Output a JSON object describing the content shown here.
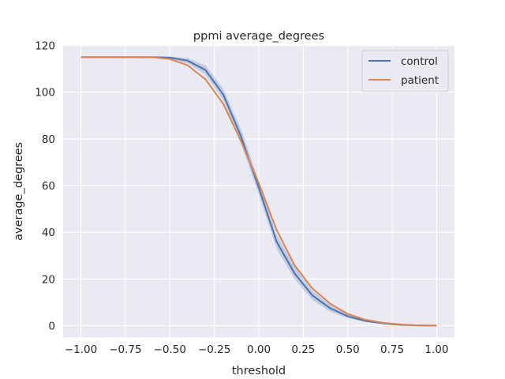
{
  "chart_data": {
    "type": "line",
    "title": "ppmi average_degrees",
    "xlabel": "threshold",
    "ylabel": "average_degrees",
    "xlim": [
      -1.1,
      1.1
    ],
    "ylim": [
      -5,
      120
    ],
    "xticks": [
      -1.0,
      -0.75,
      -0.5,
      -0.25,
      0.0,
      0.25,
      0.5,
      0.75,
      1.0
    ],
    "xtick_labels": [
      "−1.00",
      "−0.75",
      "−0.50",
      "−0.25",
      "0.00",
      "0.25",
      "0.50",
      "0.75",
      "1.00"
    ],
    "yticks": [
      0,
      20,
      40,
      60,
      80,
      100,
      120
    ],
    "ytick_labels": [
      "0",
      "20",
      "40",
      "60",
      "80",
      "100",
      "120"
    ],
    "grid": true,
    "legend_position": "top-right",
    "x": [
      -1.0,
      -0.9,
      -0.8,
      -0.7,
      -0.6,
      -0.5,
      -0.4,
      -0.3,
      -0.2,
      -0.1,
      0.0,
      0.1,
      0.2,
      0.3,
      0.4,
      0.5,
      0.6,
      0.7,
      0.8,
      0.9,
      1.0
    ],
    "series": [
      {
        "name": "control",
        "color": "#4c72b0",
        "values": [
          115,
          115,
          115,
          115,
          115,
          114.8,
          113.5,
          109.5,
          99,
          81,
          59,
          36,
          22.5,
          13,
          7.5,
          4,
          2,
          1,
          0.3,
          0.1,
          0
        ],
        "band_lower": [
          114.6,
          114.6,
          114.6,
          114.6,
          114.5,
          114.1,
          112.3,
          107.5,
          96.5,
          78,
          56,
          33,
          20,
          11,
          6,
          3.2,
          1.6,
          0.7,
          0.2,
          0.05,
          0
        ],
        "band_upper": [
          115.4,
          115.4,
          115.4,
          115.4,
          115.4,
          115.3,
          114.6,
          111.5,
          101.5,
          84,
          62,
          39,
          25.5,
          15,
          9,
          4.8,
          2.5,
          1.3,
          0.5,
          0.2,
          0.05
        ]
      },
      {
        "name": "patient",
        "color": "#dd8452",
        "values": [
          115,
          115,
          115,
          115,
          115,
          114.2,
          111.5,
          105.5,
          95,
          79,
          61,
          41,
          26,
          16,
          9.5,
          5,
          2.5,
          1.2,
          0.5,
          0.1,
          0
        ]
      }
    ]
  }
}
